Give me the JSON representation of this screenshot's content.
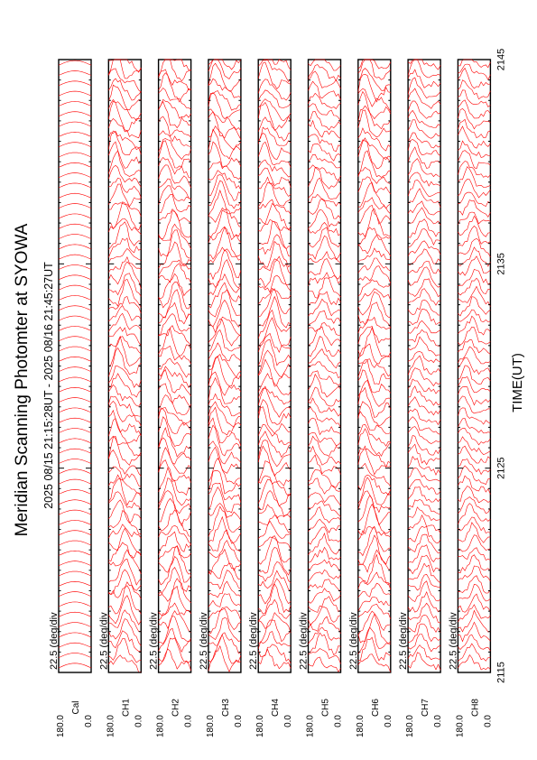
{
  "chart_data": {
    "type": "line",
    "title": "Meridian Scanning Photomter at SYOWA",
    "time_range_label": "2025 08/15 21:15:28UT - 2025 08/16 21:45:27UT",
    "xlabel": "TIME(UT)",
    "x_ticks": [
      "2115",
      "2125",
      "2135",
      "2145"
    ],
    "xlim": [
      2115,
      2145
    ],
    "trace_color": "#ff0000",
    "panels": [
      {
        "scale": "22.5 (deg/div",
        "channel": "Cal",
        "y_top": "180.0",
        "y_bottom": "0.0",
        "pattern": "calibration"
      },
      {
        "scale": "22.5 (deg/div",
        "channel": "CH1",
        "y_top": "180.0",
        "y_bottom": "0.0",
        "pattern": "auroral"
      },
      {
        "scale": "22.5 (deg/div",
        "channel": "CH2",
        "y_top": "180.0",
        "y_bottom": "0.0",
        "pattern": "auroral"
      },
      {
        "scale": "22.5 (deg/div",
        "channel": "CH3",
        "y_top": "180.0",
        "y_bottom": "0.0",
        "pattern": "auroral"
      },
      {
        "scale": "22.5 (deg/div",
        "channel": "CH4",
        "y_top": "180.0",
        "y_bottom": "0.0",
        "pattern": "auroral"
      },
      {
        "scale": "22.5 (deg/div",
        "channel": "CH5",
        "y_top": "180.0",
        "y_bottom": "0.0",
        "pattern": "dense"
      },
      {
        "scale": "22.5 (deg/div",
        "channel": "CH6",
        "y_top": "180.0",
        "y_bottom": "0.0",
        "pattern": "auroral"
      },
      {
        "scale": "22.5 (deg/div",
        "channel": "CH7",
        "y_top": "180.0",
        "y_bottom": "0.0",
        "pattern": "smooth"
      },
      {
        "scale": "22.5 (deg/div",
        "channel": "CH8",
        "y_top": "180.0",
        "y_bottom": "0.0",
        "pattern": "smooth"
      }
    ]
  }
}
